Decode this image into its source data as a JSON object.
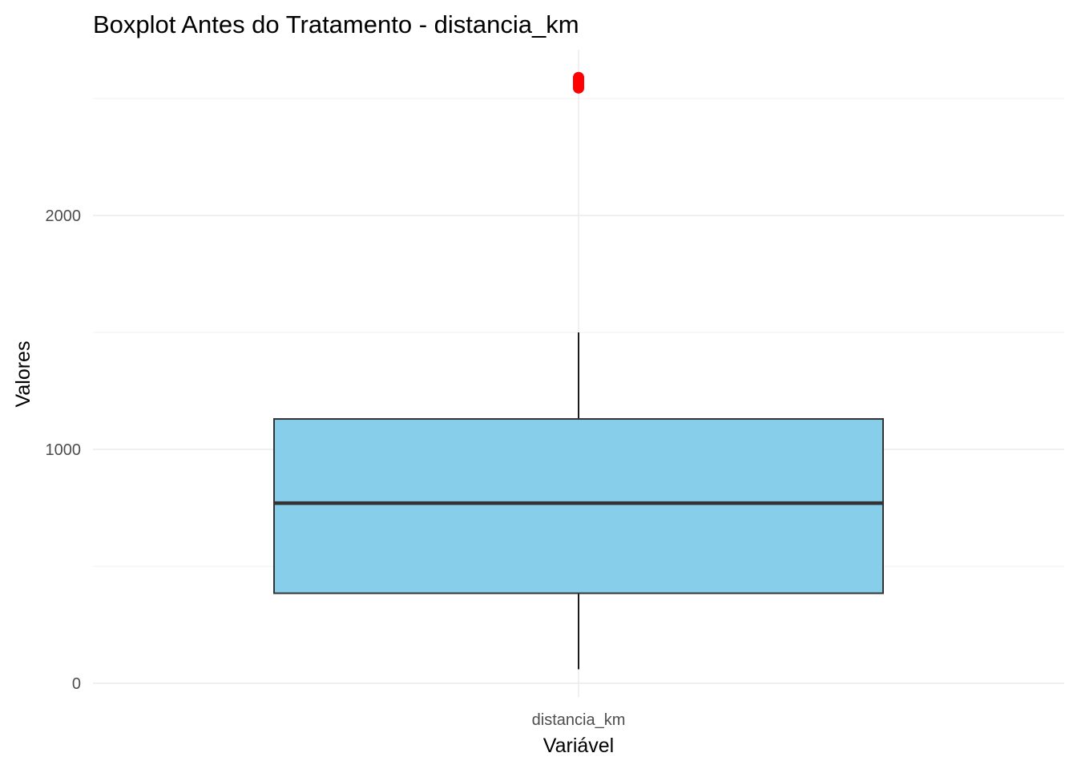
{
  "chart_data": {
    "type": "box",
    "title": "Boxplot Antes do Tratamento - distancia_km",
    "xlabel": "Variável",
    "ylabel": "Valores",
    "categories": [
      "distancia_km"
    ],
    "yticks": [
      0,
      1000,
      2000
    ],
    "yticks_labels": [
      "0",
      "1000",
      "2000"
    ],
    "ylim": [
      -80,
      2720
    ],
    "grid": true,
    "legend": "none",
    "box": {
      "category": "distancia_km",
      "min": 60,
      "q1": 385,
      "median": 770,
      "q3": 1130,
      "max": 1500,
      "outliers": [
        2545,
        2552,
        2560,
        2568,
        2575,
        2583,
        2590
      ]
    },
    "colors": {
      "box_fill": "#87CEEB",
      "box_stroke": "#333333",
      "median_line": "#333333",
      "whisker": "#1a1a1a",
      "outlier": "#FF0000",
      "grid_major": "#ebebeb",
      "grid_minor": "#f2f2f2"
    }
  }
}
